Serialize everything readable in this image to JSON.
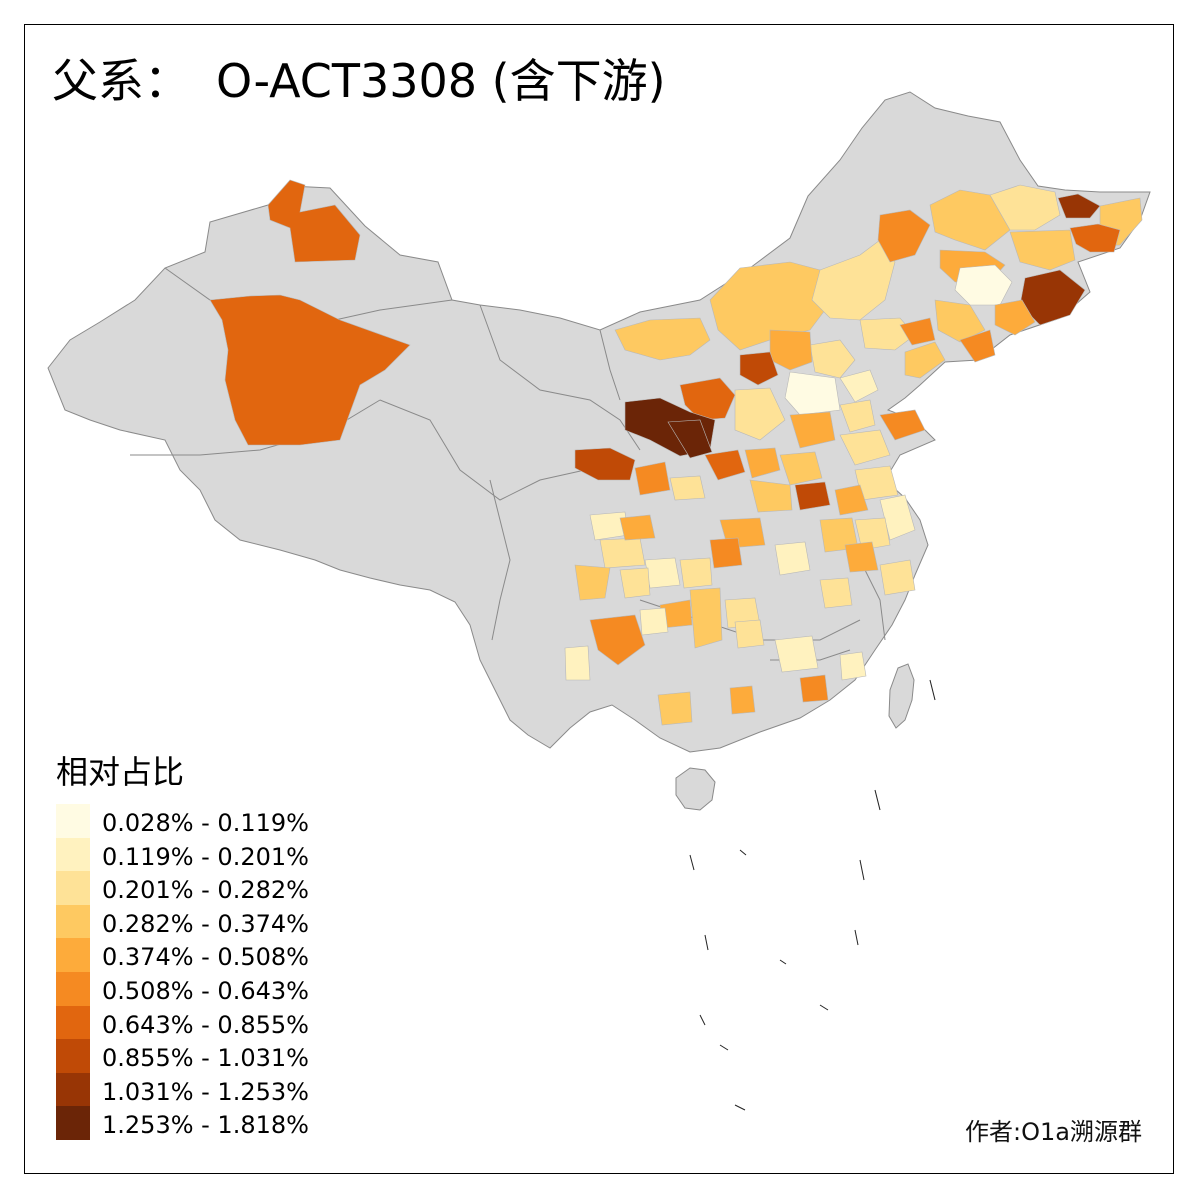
{
  "title": {
    "prefix": "父系：",
    "text": "O-ACT3308 (含下游)"
  },
  "legend": {
    "title": "相对占比",
    "items": [
      {
        "label": "0.028% - 0.119%",
        "color": "#fffbe3"
      },
      {
        "label": "0.119% - 0.201%",
        "color": "#fff2bf"
      },
      {
        "label": "0.201% - 0.282%",
        "color": "#fee297"
      },
      {
        "label": "0.282% - 0.374%",
        "color": "#fec961"
      },
      {
        "label": "0.374% - 0.508%",
        "color": "#fdab3b"
      },
      {
        "label": "0.508% - 0.643%",
        "color": "#f58a22"
      },
      {
        "label": "0.643% - 0.855%",
        "color": "#e1660f"
      },
      {
        "label": "0.855% - 1.031%",
        "color": "#c04a06"
      },
      {
        "label": "1.031% - 1.253%",
        "color": "#983505"
      },
      {
        "label": "1.253% - 1.818%",
        "color": "#6b2507"
      }
    ]
  },
  "colors": {
    "no_data": "#d9d9d9",
    "border": "#8a8a8a",
    "frame": "#000000"
  },
  "credit": "作者:O1a溯源群"
}
